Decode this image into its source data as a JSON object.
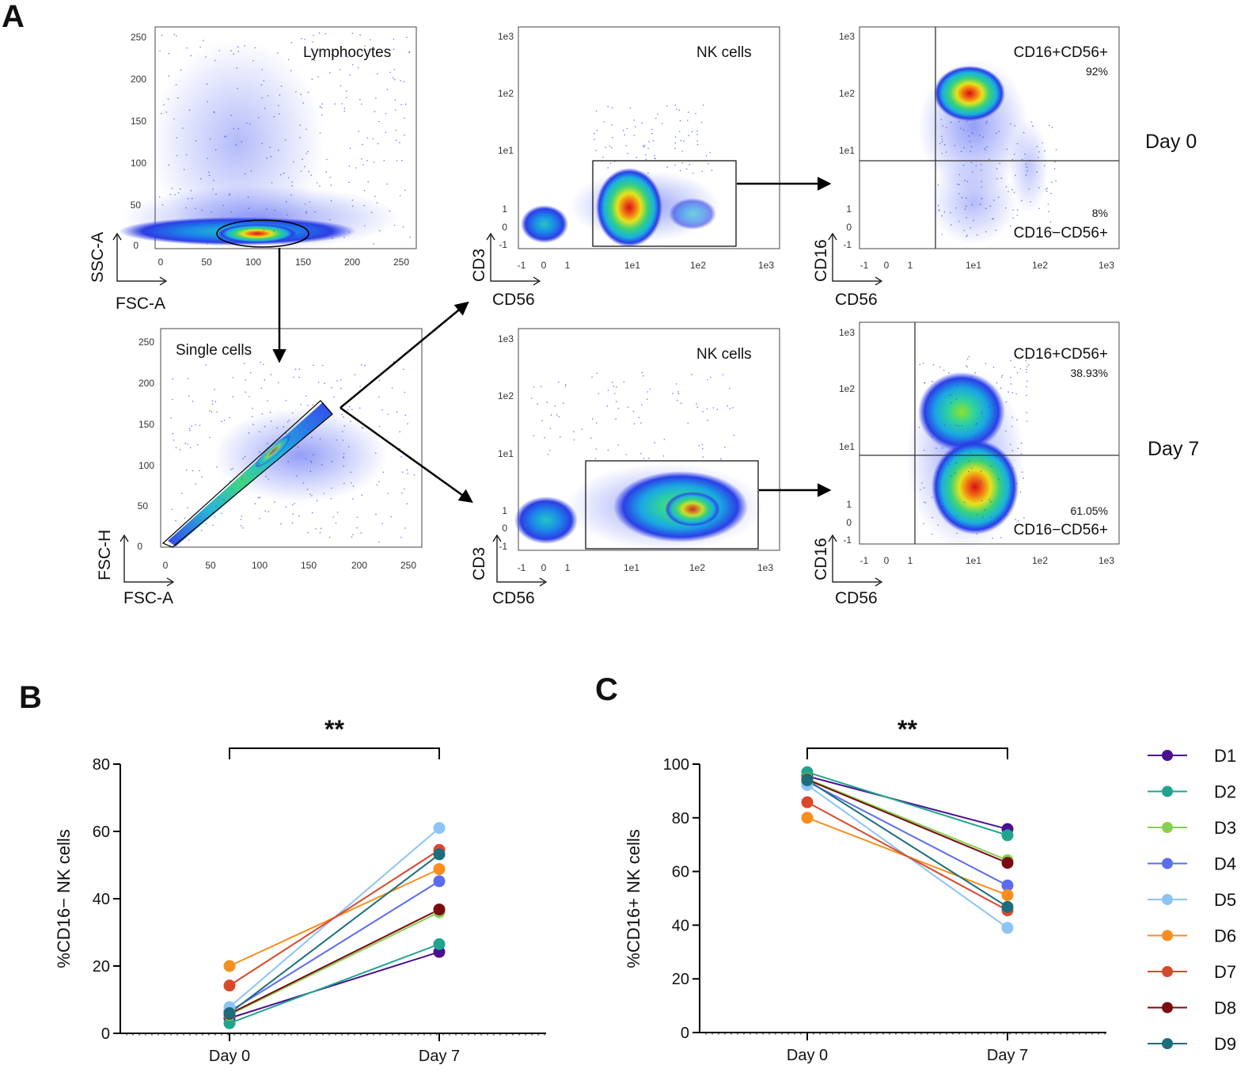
{
  "panel_labels": [
    "A",
    "B",
    "C"
  ],
  "flow": {
    "plots": [
      {
        "id": "lymphocytes",
        "gate_label": "Lymphocytes",
        "x_label": "FSC-A",
        "y_label": "SSC-A",
        "x_ticks": [
          "0",
          "50",
          "100",
          "150",
          "200",
          "250"
        ],
        "y_ticks": [
          "0",
          "50",
          "100",
          "150",
          "200",
          "250"
        ]
      },
      {
        "id": "single-cells",
        "gate_label": "Single cells",
        "x_label": "FSC-A",
        "y_label": "FSC-H",
        "x_ticks": [
          "0",
          "50",
          "100",
          "150",
          "200",
          "250"
        ],
        "y_ticks": [
          "0",
          "50",
          "100",
          "150",
          "200",
          "250"
        ]
      },
      {
        "id": "nk-day0",
        "gate_label": "NK cells",
        "x_label": "CD56",
        "y_label": "CD3",
        "x_ticks": [
          "-1",
          "0",
          "1",
          "1e1",
          "1e2",
          "1e3"
        ],
        "y_ticks": [
          "-1",
          "0",
          "1",
          "1e1",
          "1e2",
          "1e3"
        ]
      },
      {
        "id": "nk-day7",
        "gate_label": "NK cells",
        "x_label": "CD56",
        "y_label": "CD3",
        "x_ticks": [
          "-1",
          "0",
          "1",
          "1e1",
          "1e2",
          "1e3"
        ],
        "y_ticks": [
          "-1",
          "0",
          "1",
          "1e1",
          "1e2",
          "1e3"
        ]
      },
      {
        "id": "cd16-day0",
        "x_label": "CD56",
        "y_label": "CD16",
        "x_ticks": [
          "-1",
          "0",
          "1",
          "1e1",
          "1e2",
          "1e3"
        ],
        "y_ticks": [
          "-1",
          "0",
          "1",
          "1e1",
          "1e2",
          "1e3"
        ],
        "upper_label": "CD16+CD56+",
        "upper_pct": "92%",
        "lower_label": "CD16−CD56+",
        "lower_pct": "8%"
      },
      {
        "id": "cd16-day7",
        "x_label": "CD56",
        "y_label": "CD16",
        "x_ticks": [
          "-1",
          "0",
          "1",
          "1e1",
          "1e2",
          "1e3"
        ],
        "y_ticks": [
          "-1",
          "0",
          "1",
          "1e1",
          "1e2",
          "1e3"
        ],
        "upper_label": "CD16+CD56+",
        "upper_pct": "38.93%",
        "lower_label": "CD16−CD56+",
        "lower_pct": "61.05%"
      }
    ],
    "day_labels": [
      "Day 0",
      "Day 7"
    ]
  },
  "chart_data": [
    {
      "type": "line",
      "panel": "B",
      "ylabel": "%CD16− NK cells",
      "xlabel": "",
      "categories": [
        "Day 0",
        "Day 7"
      ],
      "ylim": [
        0,
        80
      ],
      "yticks": [
        0,
        20,
        40,
        60,
        80
      ],
      "significance": "**",
      "series": [
        {
          "name": "D1",
          "values": [
            4.5,
            24.2
          ]
        },
        {
          "name": "D2",
          "values": [
            3.0,
            26.5
          ]
        },
        {
          "name": "D3",
          "values": [
            5.5,
            36.0
          ]
        },
        {
          "name": "D4",
          "values": [
            6.5,
            45.2
          ]
        },
        {
          "name": "D5",
          "values": [
            7.8,
            61.0
          ]
        },
        {
          "name": "D6",
          "values": [
            20.0,
            48.8
          ]
        },
        {
          "name": "D7",
          "values": [
            14.2,
            54.5
          ]
        },
        {
          "name": "D8",
          "values": [
            5.8,
            36.8
          ]
        },
        {
          "name": "D9",
          "values": [
            6.0,
            53.2
          ]
        }
      ]
    },
    {
      "type": "line",
      "panel": "C",
      "ylabel": "%CD16+ NK cells",
      "xlabel": "",
      "categories": [
        "Day 0",
        "Day 7"
      ],
      "ylim": [
        0,
        100
      ],
      "yticks": [
        0,
        20,
        40,
        60,
        80,
        100
      ],
      "significance": "**",
      "series": [
        {
          "name": "D1",
          "values": [
            95.5,
            75.8
          ]
        },
        {
          "name": "D2",
          "values": [
            97.0,
            73.5
          ]
        },
        {
          "name": "D3",
          "values": [
            94.5,
            64.2
          ]
        },
        {
          "name": "D4",
          "values": [
            93.5,
            54.8
          ]
        },
        {
          "name": "D5",
          "values": [
            92.2,
            39.0
          ]
        },
        {
          "name": "D6",
          "values": [
            80.0,
            51.2
          ]
        },
        {
          "name": "D7",
          "values": [
            85.8,
            45.5
          ]
        },
        {
          "name": "D8",
          "values": [
            94.2,
            63.2
          ]
        },
        {
          "name": "D9",
          "values": [
            94.0,
            46.8
          ]
        }
      ]
    }
  ],
  "legend": {
    "items": [
      {
        "name": "D1",
        "color": "#4b0f8f"
      },
      {
        "name": "D2",
        "color": "#1fa58e"
      },
      {
        "name": "D3",
        "color": "#86cf52"
      },
      {
        "name": "D4",
        "color": "#5c6cf0"
      },
      {
        "name": "D5",
        "color": "#8cc4f4"
      },
      {
        "name": "D6",
        "color": "#f78e1e"
      },
      {
        "name": "D7",
        "color": "#d9482b"
      },
      {
        "name": "D8",
        "color": "#7a0b10"
      },
      {
        "name": "D9",
        "color": "#1c6e7c"
      }
    ]
  }
}
